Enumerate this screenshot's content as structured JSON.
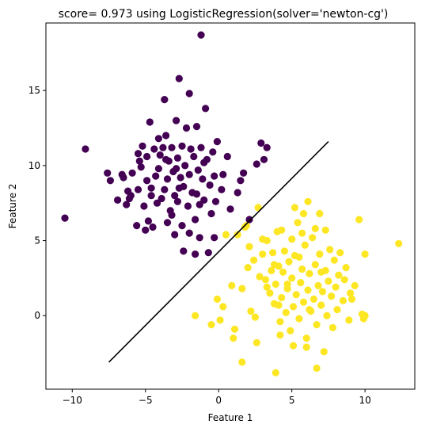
{
  "chart_data": {
    "type": "scatter",
    "title": "score= 0.973 using LogisticRegression(solver='newton-cg')",
    "xlabel": "Feature 1",
    "ylabel": "Feature 2",
    "xlim": [
      -11.8,
      13.4
    ],
    "ylim": [
      -4.9,
      19.5
    ],
    "xticks": [
      -10,
      -5,
      0,
      5,
      10
    ],
    "yticks": [
      0,
      5,
      10,
      15
    ],
    "grid": false,
    "legend": "none",
    "colors": {
      "class0": "#440154",
      "class1": "#fde725",
      "boundary": "#000000"
    },
    "boundary": {
      "x": [
        -7.5,
        7.5
      ],
      "y": [
        -3.1,
        11.6
      ]
    },
    "series": [
      {
        "color_key": "class0",
        "points": [
          [
            -10.5,
            6.5
          ],
          [
            -9.1,
            11.1
          ],
          [
            -7.6,
            9.5
          ],
          [
            -7.4,
            9.0
          ],
          [
            -6.9,
            7.7
          ],
          [
            -6.6,
            9.4
          ],
          [
            -6.5,
            9.2
          ],
          [
            -6.3,
            7.4
          ],
          [
            -6.1,
            7.8
          ],
          [
            -6.0,
            8.0
          ],
          [
            -5.9,
            9.5
          ],
          [
            -5.6,
            6.0
          ],
          [
            -5.5,
            8.4
          ],
          [
            -5.4,
            10.3
          ],
          [
            -5.3,
            9.9
          ],
          [
            -5.2,
            11.3
          ],
          [
            -5.1,
            7.3
          ],
          [
            -5.0,
            5.7
          ],
          [
            -4.9,
            10.6
          ],
          [
            -4.9,
            9.0
          ],
          [
            -4.8,
            6.3
          ],
          [
            -4.7,
            12.9
          ],
          [
            -4.6,
            8.5
          ],
          [
            -4.5,
            5.9
          ],
          [
            -4.4,
            11.1
          ],
          [
            -4.3,
            9.3
          ],
          [
            -4.2,
            7.5
          ],
          [
            -4.1,
            9.8
          ],
          [
            -4.0,
            10.7
          ],
          [
            -3.9,
            7.8
          ],
          [
            -3.8,
            11.2
          ],
          [
            -3.7,
            8.4
          ],
          [
            -3.6,
            12.0
          ],
          [
            -3.5,
            9.1
          ],
          [
            -3.5,
            6.2
          ],
          [
            -3.4,
            10.3
          ],
          [
            -3.3,
            7.0
          ],
          [
            -3.2,
            11.2
          ],
          [
            -3.1,
            9.6
          ],
          [
            -3.0,
            8.0
          ],
          [
            -3.0,
            5.4
          ],
          [
            -2.9,
            13.0
          ],
          [
            -2.8,
            10.5
          ],
          [
            -2.8,
            7.6
          ],
          [
            -2.7,
            15.8
          ],
          [
            -2.6,
            9.2
          ],
          [
            -2.5,
            11.3
          ],
          [
            -2.5,
            6.0
          ],
          [
            -2.4,
            8.6
          ],
          [
            -2.3,
            10.0
          ],
          [
            -2.2,
            12.5
          ],
          [
            -2.1,
            7.3
          ],
          [
            -2.0,
            9.4
          ],
          [
            -2.0,
            5.5
          ],
          [
            -1.9,
            11.1
          ],
          [
            -1.8,
            8.2
          ],
          [
            -1.7,
            10.6
          ],
          [
            -1.6,
            6.4
          ],
          [
            -1.5,
            12.6
          ],
          [
            -1.4,
            9.7
          ],
          [
            -1.3,
            7.4
          ],
          [
            -1.3,
            5.2
          ],
          [
            -1.2,
            11.2
          ],
          [
            -1.1,
            9.1
          ],
          [
            -1.0,
            7.7
          ],
          [
            -0.9,
            13.8
          ],
          [
            -0.8,
            10.4
          ],
          [
            -0.7,
            4.2
          ],
          [
            -0.6,
            8.7
          ],
          [
            -0.5,
            6.8
          ],
          [
            -0.4,
            10.9
          ],
          [
            -0.3,
            9.3
          ],
          [
            -0.2,
            7.6
          ],
          [
            -0.1,
            11.6
          ],
          [
            -1.2,
            18.7
          ],
          [
            -2.0,
            14.8
          ],
          [
            -3.7,
            14.4
          ],
          [
            -1.6,
            4.1
          ],
          [
            -4.6,
            8.0
          ],
          [
            -6.2,
            8.3
          ],
          [
            -3.6,
            10.4
          ],
          [
            -2.7,
            8.5
          ],
          [
            -1.5,
            8.1
          ],
          [
            -0.3,
            5.2
          ],
          [
            0.3,
            9.4
          ],
          [
            0.6,
            10.6
          ],
          [
            1.3,
            8.2
          ],
          [
            1.7,
            9.5
          ],
          [
            2.1,
            6.4
          ],
          [
            2.6,
            10.1
          ],
          [
            3.1,
            10.4
          ],
          [
            3.3,
            11.2
          ],
          [
            2.9,
            11.5
          ],
          [
            1.5,
            9.0
          ],
          [
            0.8,
            7.1
          ],
          [
            -2.4,
            4.3
          ],
          [
            -5.5,
            10.8
          ],
          [
            -4.1,
            11.8
          ],
          [
            -3.2,
            6.7
          ],
          [
            -2.9,
            9.8
          ],
          [
            -1.0,
            10.2
          ],
          [
            0.2,
            8.4
          ]
        ]
      },
      {
        "color_key": "class1",
        "points": [
          [
            1.3,
            5.4
          ],
          [
            1.8,
            5.9
          ],
          [
            2.1,
            4.6
          ],
          [
            2.4,
            3.7
          ],
          [
            2.7,
            7.2
          ],
          [
            3.0,
            4.1
          ],
          [
            3.2,
            2.4
          ],
          [
            3.3,
            5.0
          ],
          [
            3.5,
            1.5
          ],
          [
            3.6,
            3.0
          ],
          [
            3.7,
            4.2
          ],
          [
            3.8,
            0.8
          ],
          [
            3.9,
            2.1
          ],
          [
            4.0,
            5.6
          ],
          [
            4.1,
            3.3
          ],
          [
            4.2,
            -0.4
          ],
          [
            4.3,
            1.2
          ],
          [
            4.4,
            2.9
          ],
          [
            4.5,
            4.3
          ],
          [
            4.6,
            0.2
          ],
          [
            4.7,
            1.8
          ],
          [
            4.8,
            3.6
          ],
          [
            4.9,
            -1.0
          ],
          [
            5.0,
            2.5
          ],
          [
            5.1,
            0.6
          ],
          [
            5.2,
            4.0
          ],
          [
            5.3,
            1.4
          ],
          [
            5.4,
            6.2
          ],
          [
            5.5,
            -0.2
          ],
          [
            5.6,
            2.2
          ],
          [
            5.7,
            3.1
          ],
          [
            5.8,
            0.9
          ],
          [
            5.9,
            4.7
          ],
          [
            6.0,
            -1.5
          ],
          [
            6.1,
            1.7
          ],
          [
            6.2,
            2.8
          ],
          [
            6.3,
            0.3
          ],
          [
            6.4,
            5.2
          ],
          [
            6.5,
            1.1
          ],
          [
            6.6,
            3.4
          ],
          [
            6.7,
            -0.6
          ],
          [
            6.8,
            2.0
          ],
          [
            6.9,
            4.1
          ],
          [
            7.0,
            0.7
          ],
          [
            7.1,
            1.6
          ],
          [
            7.2,
            -2.4
          ],
          [
            7.3,
            3.0
          ],
          [
            7.4,
            0.0
          ],
          [
            7.5,
            2.3
          ],
          [
            7.6,
            4.4
          ],
          [
            7.7,
            1.3
          ],
          [
            7.8,
            -0.8
          ],
          [
            7.9,
            3.7
          ],
          [
            8.0,
            1.9
          ],
          [
            8.1,
            0.4
          ],
          [
            8.2,
            2.7
          ],
          [
            8.3,
            4.2
          ],
          [
            8.5,
            1.0
          ],
          [
            8.7,
            3.2
          ],
          [
            8.9,
            -0.3
          ],
          [
            9.0,
            1.5
          ],
          [
            9.3,
            2.0
          ],
          [
            9.6,
            6.4
          ],
          [
            9.9,
            -0.2
          ],
          [
            10.0,
            0.0
          ],
          [
            12.3,
            4.8
          ],
          [
            0.9,
            2.0
          ],
          [
            0.3,
            0.6
          ],
          [
            0.1,
            -0.3
          ],
          [
            -0.5,
            -0.6
          ],
          [
            -1.6,
            0.0
          ],
          [
            -0.1,
            1.1
          ],
          [
            1.1,
            -0.9
          ],
          [
            1.0,
            -1.5
          ],
          [
            1.6,
            1.8
          ],
          [
            2.2,
            0.3
          ],
          [
            2.5,
            -0.1
          ],
          [
            2.6,
            -1.8
          ],
          [
            1.6,
            -3.1
          ],
          [
            3.9,
            -3.8
          ],
          [
            6.7,
            -3.5
          ],
          [
            6.0,
            -2.1
          ],
          [
            4.2,
            -1.3
          ],
          [
            5.1,
            -2.0
          ],
          [
            5.8,
            6.8
          ],
          [
            5.2,
            7.2
          ],
          [
            6.1,
            7.6
          ],
          [
            5.7,
            5.5
          ],
          [
            6.6,
            5.8
          ],
          [
            3.0,
            5.1
          ],
          [
            4.3,
            5.7
          ],
          [
            6.9,
            6.8
          ],
          [
            10.0,
            4.1
          ],
          [
            9.8,
            0.1
          ],
          [
            7.3,
            5.7
          ],
          [
            3.8,
            3.4
          ],
          [
            4.7,
            2.1
          ],
          [
            5.5,
            3.9
          ],
          [
            6.2,
            0.4
          ],
          [
            7.0,
            2.9
          ],
          [
            4.1,
            0.7
          ],
          [
            3.3,
            1.9
          ],
          [
            8.6,
            2.4
          ],
          [
            9.1,
            1.1
          ],
          [
            5.0,
            5.1
          ],
          [
            2.0,
            3.2
          ],
          [
            2.8,
            2.6
          ],
          [
            0.5,
            5.4
          ],
          [
            1.9,
            6.0
          ]
        ]
      }
    ]
  }
}
